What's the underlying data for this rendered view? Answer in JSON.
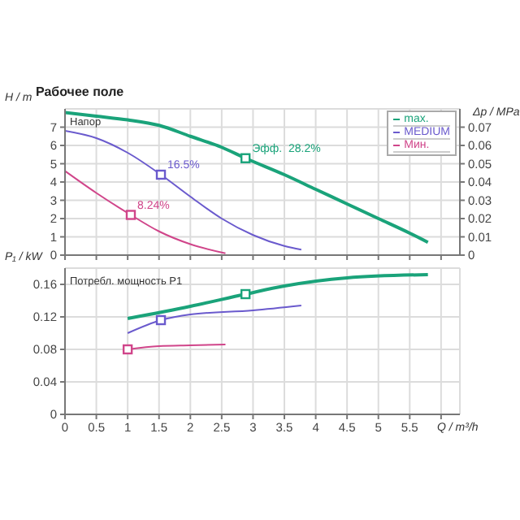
{
  "chart_data": [
    {
      "type": "line",
      "title": "Рабочее поле",
      "ylabel": "H / m",
      "y2label": "Δp / MPa",
      "annotations": [
        "Напор",
        {
          "text": "Эфф.  28.2%",
          "x": 2.88,
          "y": 5.3
        },
        {
          "text": "16.5%",
          "x": 1.53,
          "y": 4.4
        },
        {
          "text": "8.24%",
          "x": 1.05,
          "y": 2.2
        }
      ],
      "series": [
        {
          "name": "max.",
          "color": "#1aa37a",
          "x": [
            0,
            0.5,
            1,
            1.5,
            2,
            2.5,
            2.88,
            3.5,
            4,
            4.5,
            5,
            5.5,
            5.79
          ],
          "values": [
            7.8,
            7.6,
            7.4,
            7.1,
            6.5,
            5.9,
            5.3,
            4.4,
            3.6,
            2.8,
            2.0,
            1.2,
            0.7
          ]
        },
        {
          "name": "MEDIUM",
          "color": "#6a5acd",
          "x": [
            0,
            0.5,
            1,
            1.53,
            2,
            2.5,
            3,
            3.5,
            3.77
          ],
          "values": [
            6.8,
            6.4,
            5.6,
            4.4,
            3.2,
            2.0,
            1.1,
            0.5,
            0.3
          ]
        },
        {
          "name": "Мин.",
          "color": "#d0458a",
          "x": [
            0,
            0.5,
            1.05,
            1.5,
            2,
            2.56
          ],
          "values": [
            4.6,
            3.4,
            2.2,
            1.3,
            0.6,
            0.1
          ]
        },
        {
          "type": "scatter",
          "marker": "square",
          "color": "#1aa37a",
          "x": [
            2.88
          ],
          "values": [
            5.3
          ]
        },
        {
          "type": "scatter",
          "marker": "square",
          "color": "#6a5acd",
          "x": [
            1.53
          ],
          "values": [
            4.4
          ]
        },
        {
          "type": "scatter",
          "marker": "square",
          "color": "#d0458a",
          "x": [
            1.05
          ],
          "values": [
            2.2
          ]
        }
      ],
      "xlim": [
        0,
        6.3
      ],
      "xticks": [
        0,
        0.5,
        1,
        1.5,
        2,
        2.5,
        3,
        3.5,
        4,
        4.5,
        5,
        5.5,
        6
      ],
      "ylim": [
        0,
        8
      ],
      "yticks": [
        0,
        1,
        2,
        3,
        4,
        5,
        6,
        7
      ],
      "y2lim": [
        0,
        0.08
      ],
      "y2ticks": [
        0,
        0.01,
        0.02,
        0.03,
        0.04,
        0.05,
        0.06,
        0.07
      ],
      "grid": true,
      "legend": "top right",
      "marker": "none",
      "tick_labels": "y"
    },
    {
      "type": "line",
      "ylabel": "P₁ / kW",
      "xlabel": "Q / m³/h",
      "annotations": [
        "Потребл. мощность P1"
      ],
      "series": [
        {
          "color": "#1aa37a",
          "x": [
            1,
            2,
            2.88,
            3.5,
            4.5,
            5.79
          ],
          "values": [
            0.118,
            0.133,
            0.148,
            0.158,
            0.168,
            0.172
          ]
        },
        {
          "color": "#6a5acd",
          "x": [
            1,
            1.53,
            2,
            3,
            3.77
          ],
          "values": [
            0.1,
            0.116,
            0.123,
            0.128,
            0.134
          ]
        },
        {
          "color": "#d0458a",
          "x": [
            1,
            1.5,
            2,
            2.56
          ],
          "values": [
            0.08,
            0.084,
            0.085,
            0.086
          ]
        },
        {
          "type": "scatter",
          "marker": "square",
          "color": "#1aa37a",
          "x": [
            2.88
          ],
          "values": [
            0.148
          ]
        },
        {
          "type": "scatter",
          "marker": "square",
          "color": "#6a5acd",
          "x": [
            1.53
          ],
          "values": [
            0.116
          ]
        },
        {
          "type": "scatter",
          "marker": "square",
          "color": "#d0458a",
          "x": [
            1
          ],
          "values": [
            0.08
          ]
        }
      ],
      "xlim": [
        0,
        6.3
      ],
      "xticks": [
        0,
        0.5,
        1,
        1.5,
        2,
        2.5,
        3,
        3.5,
        4,
        4.5,
        5,
        5.5,
        {
          "value": 6,
          "label": null
        }
      ],
      "ylim": [
        0,
        0.18
      ],
      "yticks": [
        0,
        0.04,
        0.08,
        0.12,
        0.16
      ],
      "grid": true,
      "marker": "none"
    }
  ]
}
